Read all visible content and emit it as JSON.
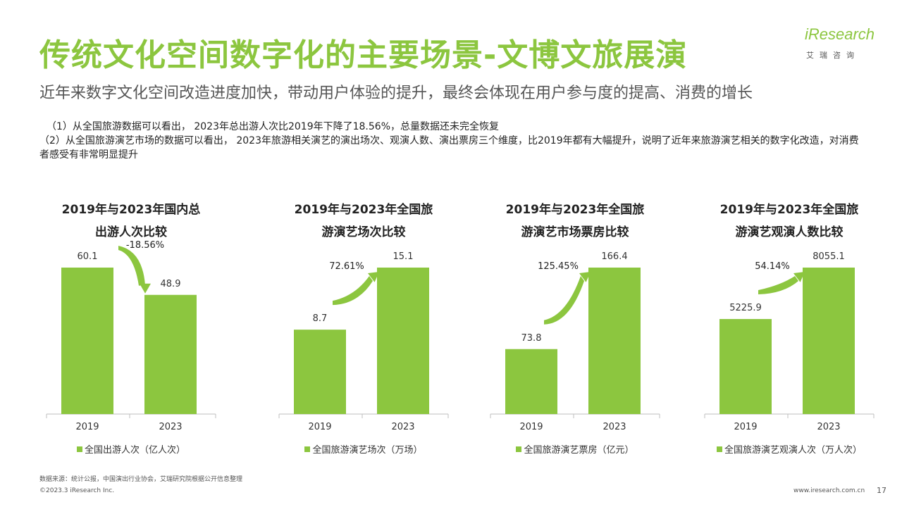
{
  "title": "传统文化空间数字化的主要场景-文博文旅展演",
  "subtitle": "近年来数字文化空间改造进度加快，带动用户体验的提升，最终会体现在用户参与度的提高、消费的增长",
  "logo": {
    "name": "iResearch",
    "sub": "艾瑞咨询"
  },
  "notes": [
    "（1）从全国旅游数据可以看出， 2023年总出游人次比2019年下降了18.56%，总量数据还未完全恢复",
    "（2）从全国旅游演艺市场的数据可以看出， 2023年旅游相关演艺的演出场次、观演人数、演出票房三个维度，比2019年都有大幅提升，说明了近年来旅游演艺相关的数字化改造，对消费者感受有非常明显提升"
  ],
  "colors": {
    "accent": "#8cc63f",
    "bar": "#8cc63f",
    "axis": "#bfbfbf"
  },
  "chart_data": [
    {
      "type": "bar",
      "title": "2019年与2023年国内总出游人次比较",
      "title_lines": [
        "2019年与2023年国内总",
        "出游人次比较"
      ],
      "categories": [
        "2019",
        "2023"
      ],
      "values": [
        60.1,
        48.9
      ],
      "value_labels": [
        "60.1",
        "48.9"
      ],
      "series": [
        {
          "name": "全国出游人次（亿人次）",
          "values": [
            60.1,
            48.9
          ]
        }
      ],
      "change_label": "-18.56%",
      "arrow_direction": "down"
    },
    {
      "type": "bar",
      "title": "2019年与2023年全国旅游演艺场次比较",
      "title_lines": [
        "2019年与2023年全国旅",
        "游演艺场次比较"
      ],
      "categories": [
        "2019",
        "2023"
      ],
      "values": [
        8.7,
        15.1
      ],
      "value_labels": [
        "8.7",
        "15.1"
      ],
      "series": [
        {
          "name": "全国旅游演艺场次（万场）",
          "values": [
            8.7,
            15.1
          ]
        }
      ],
      "change_label": "72.61%",
      "arrow_direction": "up"
    },
    {
      "type": "bar",
      "title": "2019年与2023年全国旅游演艺市场票房比较",
      "title_lines": [
        "2019年与2023年全国旅",
        "游演艺市场票房比较"
      ],
      "categories": [
        "2019",
        "2023"
      ],
      "values": [
        73.8,
        166.4
      ],
      "value_labels": [
        "73.8",
        "166.4"
      ],
      "series": [
        {
          "name": "全国旅游演艺票房（亿元）",
          "values": [
            73.8,
            166.4
          ]
        }
      ],
      "change_label": "125.45%",
      "arrow_direction": "up"
    },
    {
      "type": "bar",
      "title": "2019年与2023年全国旅游演艺观演人数比较",
      "title_lines": [
        "2019年与2023年全国旅",
        "游演艺观演人数比较"
      ],
      "categories": [
        "2019",
        "2023"
      ],
      "values": [
        5225.9,
        8055.1
      ],
      "value_labels": [
        "5225.9",
        "8055.1"
      ],
      "series": [
        {
          "name": "全国旅游演艺观演人次（万人次）",
          "values": [
            5225.9,
            8055.1
          ]
        }
      ],
      "change_label": "54.14%",
      "arrow_direction": "up"
    }
  ],
  "footer": {
    "source": "数据来源：统计公报，中国演出行业协会，艾瑞研究院根据公开信息整理",
    "copyright": "©2023.3 iResearch Inc.",
    "website": "www.iresearch.com.cn",
    "page": "17"
  }
}
